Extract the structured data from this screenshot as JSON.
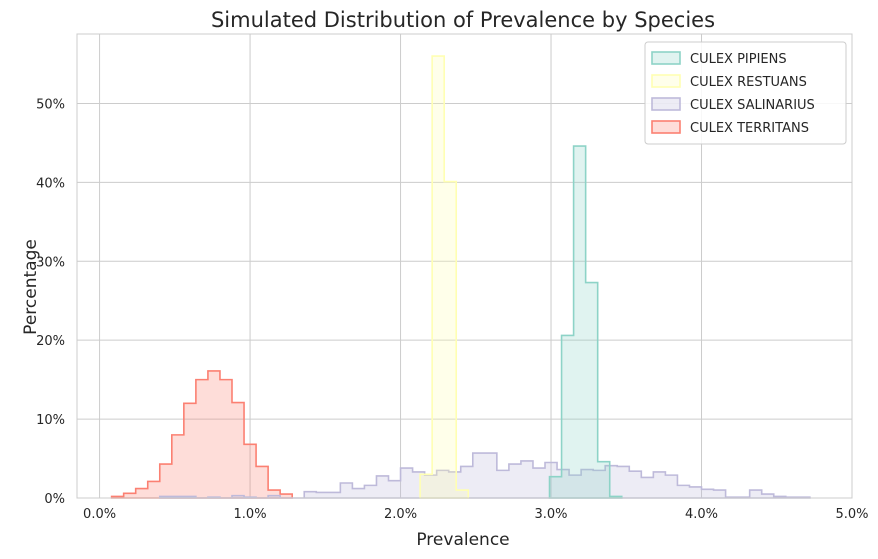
{
  "chart_data": {
    "type": "histogram-step",
    "title": "Simulated Distribution of Prevalence by Species",
    "xlabel": "Prevalence",
    "ylabel": "Percentage",
    "xlim": [
      -0.0015,
      0.05
    ],
    "ylim": [
      0,
      0.588
    ],
    "xticks": [
      {
        "value": 0.0,
        "label": "0.0%"
      },
      {
        "value": 0.01,
        "label": "1.0%"
      },
      {
        "value": 0.02,
        "label": "2.0%"
      },
      {
        "value": 0.03,
        "label": "3.0%"
      },
      {
        "value": 0.04,
        "label": "4.0%"
      },
      {
        "value": 0.05,
        "label": "5.0%"
      }
    ],
    "yticks": [
      {
        "value": 0.0,
        "label": "0%"
      },
      {
        "value": 0.1,
        "label": "10%"
      },
      {
        "value": 0.2,
        "label": "20%"
      },
      {
        "value": 0.3,
        "label": "30%"
      },
      {
        "value": 0.4,
        "label": "40%"
      },
      {
        "value": 0.5,
        "label": "50%"
      }
    ],
    "grid": true,
    "legend_position": "top-right",
    "series": [
      {
        "name": "CULEX TERRITANS",
        "color": "#fb8072",
        "bin_start": 0.0008,
        "bin_width": 0.0008,
        "values": [
          0.002,
          0.006,
          0.012,
          0.021,
          0.043,
          0.08,
          0.12,
          0.15,
          0.161,
          0.15,
          0.121,
          0.068,
          0.04,
          0.01,
          0.005
        ]
      },
      {
        "name": "CULEX SALINARIUS",
        "color": "#bebada",
        "bin_start": 0.004,
        "bin_width": 0.0008,
        "values": [
          0.002,
          0.002,
          0.002,
          0.0,
          0.001,
          0.0,
          0.003,
          0.001,
          0.0,
          0.003,
          0.0,
          0.0,
          0.008,
          0.007,
          0.007,
          0.019,
          0.012,
          0.016,
          0.028,
          0.022,
          0.038,
          0.033,
          0.029,
          0.035,
          0.033,
          0.04,
          0.057,
          0.057,
          0.035,
          0.043,
          0.047,
          0.038,
          0.045,
          0.036,
          0.029,
          0.036,
          0.035,
          0.041,
          0.04,
          0.034,
          0.026,
          0.033,
          0.029,
          0.016,
          0.014,
          0.011,
          0.01,
          0.001,
          0.001,
          0.01,
          0.005,
          0.002,
          0.001,
          0.001
        ]
      },
      {
        "name": "CULEX RESTUANS",
        "color": "#ffffb3",
        "bin_start": 0.0213,
        "bin_width": 0.0008,
        "values": [
          0.03,
          0.56,
          0.401,
          0.01
        ]
      },
      {
        "name": "CULEX PIPIENS",
        "color": "#8dd3c7",
        "bin_start": 0.0299,
        "bin_width": 0.0008,
        "values": [
          0.027,
          0.206,
          0.446,
          0.273,
          0.046,
          0.002
        ]
      }
    ]
  }
}
